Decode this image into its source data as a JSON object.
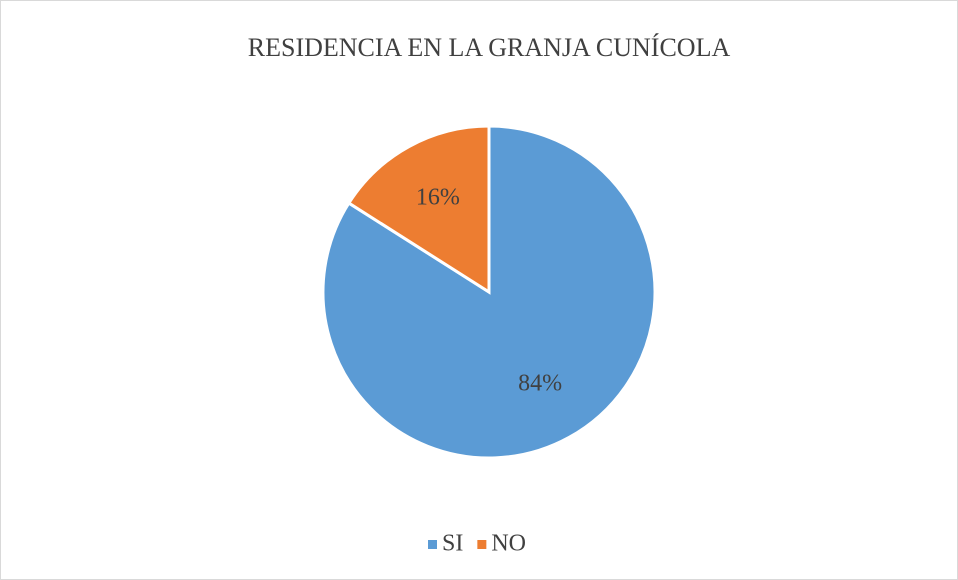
{
  "chart_data": {
    "type": "pie",
    "title": "RESIDENCIA EN LA GRANJA CUNÍCOLA",
    "categories": [
      "SI",
      "NO"
    ],
    "values": [
      84,
      16
    ],
    "value_labels": [
      "84%",
      "16%"
    ],
    "colors": [
      "#5b9bd5",
      "#ed7d31"
    ],
    "legend": "bottom"
  }
}
